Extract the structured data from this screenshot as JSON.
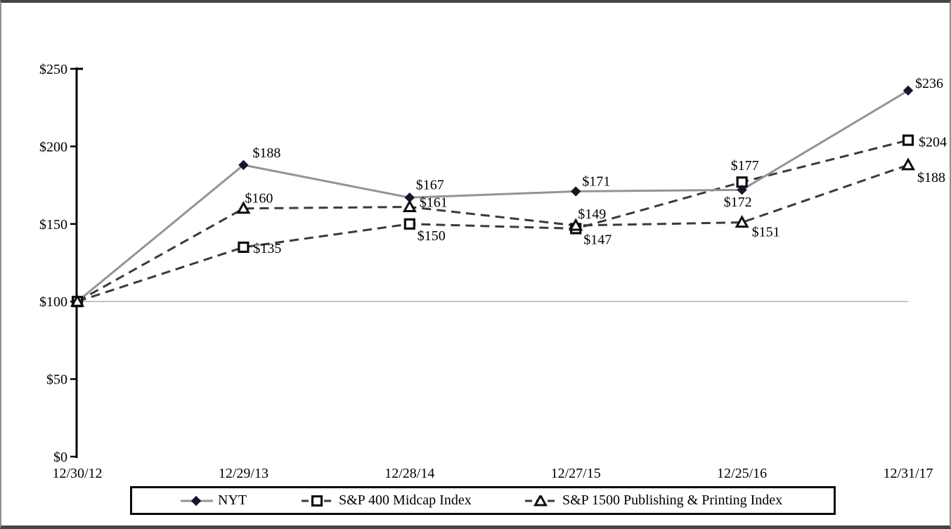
{
  "chart_data": {
    "type": "line",
    "title": "",
    "xlabel": "",
    "ylabel": "",
    "categories": [
      "12/30/12",
      "12/29/13",
      "12/28/14",
      "12/27/15",
      "12/25/16",
      "12/31/17"
    ],
    "y_ticks": [
      "$0",
      "$50",
      "$100",
      "$150",
      "$200",
      "$250"
    ],
    "ylim": [
      0,
      250
    ],
    "y_tick_step": 50,
    "grid": "single horizontal gridline at 100",
    "gridline_value": 100,
    "legend_position": "bottom",
    "axis_color": "#000000",
    "gridline_color": "#b2b2b2",
    "series": [
      {
        "name": "NYT",
        "marker": "diamond",
        "line_style": "solid",
        "line_color": "#949494",
        "marker_color": "#15152e",
        "values": [
          100,
          188,
          167,
          171,
          172,
          236
        ],
        "point_labels": [
          "",
          "$188",
          "$167",
          "$171",
          "$172",
          "$236"
        ]
      },
      {
        "name": "S&P 400 Midcap Index",
        "marker": "square",
        "line_style": "dashed",
        "line_color": "#3a3a3a",
        "marker_color": "#0d0d0d",
        "values": [
          100,
          135,
          150,
          147,
          177,
          204
        ],
        "point_labels": [
          "",
          "$135",
          "$150",
          "$147",
          "$177",
          "$204"
        ]
      },
      {
        "name": "S&P 1500 Publishing & Printing Index",
        "marker": "triangle",
        "line_style": "dashed",
        "line_color": "#3a3a3a",
        "marker_color": "#0d0d0d",
        "values": [
          100,
          160,
          161,
          149,
          151,
          188
        ],
        "point_labels": [
          "",
          "$160",
          "$161",
          "$149",
          "$151",
          "$188"
        ]
      }
    ]
  }
}
